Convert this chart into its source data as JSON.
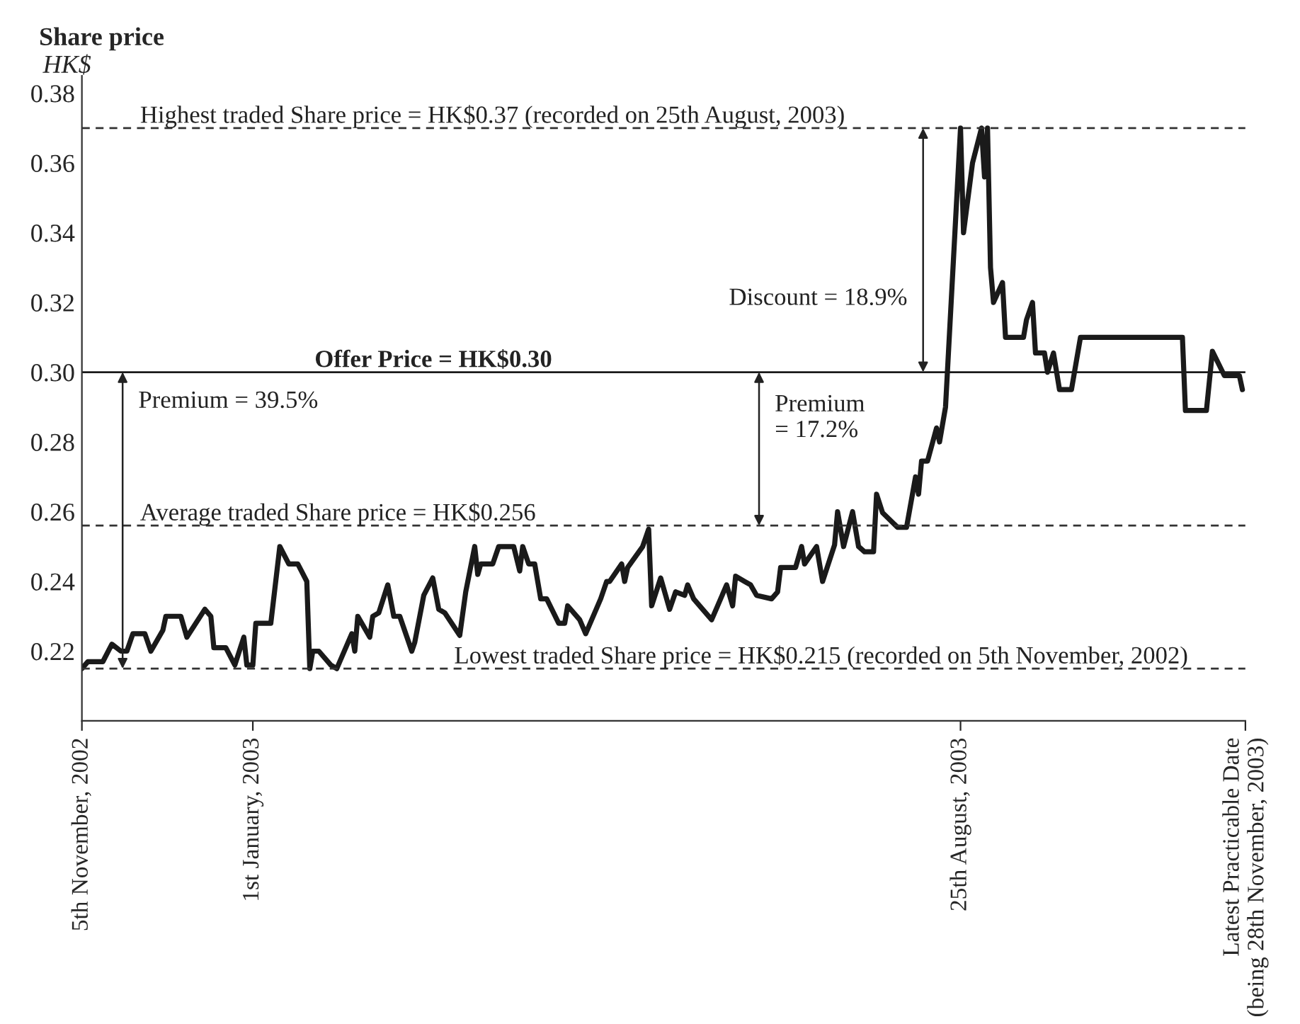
{
  "chart_data": {
    "type": "line",
    "title": "Share price",
    "ylabel": "HK$",
    "x": [
      "2002-11-05",
      "2002-11-07",
      "2002-11-12",
      "2002-11-15",
      "2002-11-18",
      "2002-11-20",
      "2002-11-22",
      "2002-11-26",
      "2002-11-28",
      "2002-12-02",
      "2002-12-03",
      "2002-12-08",
      "2002-12-10",
      "2002-12-16",
      "2002-12-18",
      "2002-12-19",
      "2002-12-23",
      "2002-12-26",
      "2002-12-29",
      "2002-12-30",
      "2003-01-01",
      "2003-01-02",
      "2003-01-07",
      "2003-01-10",
      "2003-01-13",
      "2003-01-16",
      "2003-01-19",
      "2003-01-20",
      "2003-01-21",
      "2003-01-23",
      "2003-01-27",
      "2003-01-29",
      "2003-02-03",
      "2003-02-04",
      "2003-02-05",
      "2003-02-09",
      "2003-02-10",
      "2003-02-12",
      "2003-02-15",
      "2003-02-17",
      "2003-02-19",
      "2003-02-23",
      "2003-02-24",
      "2003-02-27",
      "2003-03-02",
      "2003-03-04",
      "2003-03-06",
      "2003-03-11",
      "2003-03-13",
      "2003-03-16",
      "2003-03-17",
      "2003-03-18",
      "2003-03-22",
      "2003-03-24",
      "2003-03-29",
      "2003-03-31",
      "2003-04-01",
      "2003-04-03",
      "2003-04-05",
      "2003-04-07",
      "2003-04-09",
      "2003-04-13",
      "2003-04-15",
      "2003-04-16",
      "2003-04-20",
      "2003-04-22",
      "2003-04-27",
      "2003-04-29",
      "2003-04-30",
      "2003-05-04",
      "2003-05-05",
      "2003-05-06",
      "2003-05-11",
      "2003-05-13",
      "2003-05-14",
      "2003-05-17",
      "2003-05-20",
      "2003-05-22",
      "2003-05-25",
      "2003-05-26",
      "2003-05-28",
      "2003-06-03",
      "2003-06-08",
      "2003-06-10",
      "2003-06-11",
      "2003-06-14",
      "2003-06-16",
      "2003-06-18",
      "2003-06-23",
      "2003-06-25",
      "2003-06-26",
      "2003-07-01",
      "2003-07-03",
      "2003-07-04",
      "2003-07-08",
      "2003-07-10",
      "2003-07-14",
      "2003-07-15",
      "2003-07-17",
      "2003-07-20",
      "2003-07-22",
      "2003-07-24",
      "2003-07-27",
      "2003-07-28",
      "2003-07-30",
      "2003-08-04",
      "2003-08-07",
      "2003-08-10",
      "2003-08-11",
      "2003-08-12",
      "2003-08-14",
      "2003-08-17",
      "2003-08-18",
      "2003-08-20",
      "2003-08-25",
      "2003-08-26",
      "2003-08-29",
      "2003-09-01",
      "2003-09-02",
      "2003-09-03",
      "2003-09-04",
      "2003-09-05",
      "2003-09-08",
      "2003-09-09",
      "2003-09-15",
      "2003-09-16",
      "2003-09-18",
      "2003-09-19",
      "2003-09-22",
      "2003-09-23",
      "2003-09-25",
      "2003-09-27",
      "2003-10-01",
      "2003-10-04",
      "2003-11-07",
      "2003-11-08",
      "2003-11-15",
      "2003-11-17",
      "2003-11-21",
      "2003-11-26",
      "2003-11-27"
    ],
    "series": [
      {
        "color": "#1a1a1a",
        "values": [
          0.215,
          0.217,
          0.217,
          0.222,
          0.22,
          0.22,
          0.225,
          0.225,
          0.22,
          0.226,
          0.23,
          0.23,
          0.224,
          0.232,
          0.23,
          0.221,
          0.221,
          0.216,
          0.224,
          0.216,
          0.216,
          0.228,
          0.228,
          0.25,
          0.245,
          0.245,
          0.24,
          0.215,
          0.22,
          0.22,
          0.216,
          0.215,
          0.225,
          0.22,
          0.23,
          0.224,
          0.23,
          0.231,
          0.239,
          0.23,
          0.23,
          0.22,
          0.2225,
          0.236,
          0.241,
          0.232,
          0.231,
          0.2245,
          0.237,
          0.25,
          0.242,
          0.245,
          0.245,
          0.25,
          0.25,
          0.243,
          0.25,
          0.245,
          0.245,
          0.235,
          0.235,
          0.228,
          0.228,
          0.233,
          0.229,
          0.225,
          0.235,
          0.24,
          0.24,
          0.245,
          0.24,
          0.244,
          0.25,
          0.255,
          0.233,
          0.241,
          0.232,
          0.237,
          0.236,
          0.239,
          0.235,
          0.229,
          0.239,
          0.233,
          0.2415,
          0.24,
          0.239,
          0.236,
          0.235,
          0.237,
          0.244,
          0.244,
          0.25,
          0.245,
          0.25,
          0.24,
          0.2505,
          0.26,
          0.25,
          0.26,
          0.25,
          0.2485,
          0.2485,
          0.265,
          0.2597,
          0.2555,
          0.2555,
          0.27,
          0.265,
          0.2745,
          0.2745,
          0.284,
          0.28,
          0.29,
          0.37,
          0.34,
          0.36,
          0.37,
          0.356,
          0.37,
          0.33,
          0.32,
          0.3257,
          0.31,
          0.31,
          0.315,
          0.32,
          0.3055,
          0.3055,
          0.3,
          0.3055,
          0.295,
          0.295,
          0.31,
          0.31,
          0.289,
          0.289,
          0.306,
          0.299,
          0.299,
          0.295
        ]
      }
    ],
    "xlim": [
      "2002-11-05",
      "2003-11-28"
    ],
    "xticks": [
      {
        "value": "2002-11-05",
        "label": "5th November, 2002"
      },
      {
        "value": "2003-01-01",
        "label": "1st January, 2003"
      },
      {
        "value": "2003-08-25",
        "label": "25th August, 2003"
      },
      {
        "value": "2003-11-28",
        "label": "Latest Practicable Date\n(being 28th November, 2003)"
      }
    ],
    "ylim": [
      0.2,
      0.385
    ],
    "yticks": [
      {
        "value": 0.22,
        "label": "0.22"
      },
      {
        "value": 0.24,
        "label": "0.24"
      },
      {
        "value": 0.26,
        "label": "0.26"
      },
      {
        "value": 0.28,
        "label": "0.28"
      },
      {
        "value": 0.3,
        "label": "0.30"
      },
      {
        "value": 0.32,
        "label": "0.32"
      },
      {
        "value": 0.34,
        "label": "0.34"
      },
      {
        "value": 0.36,
        "label": "0.36"
      },
      {
        "value": 0.38,
        "label": "0.38"
      }
    ],
    "ref_lines": [
      {
        "axis": "y",
        "value": 0.37,
        "label": "Highest traded Share price = HK$0.37 (recorded on 25th August, 2003)",
        "line_style": "dashed",
        "color": "#333333"
      },
      {
        "axis": "y",
        "value": 0.3,
        "label": "Offer Price = HK$0.30",
        "line_style": "solid",
        "color": "#1a1a1a"
      },
      {
        "axis": "y",
        "value": 0.256,
        "label": "Average traded Share price = HK$0.256",
        "line_style": "dashed",
        "color": "#333333"
      },
      {
        "axis": "y",
        "value": 0.215,
        "label": "Lowest traded Share price = HK$0.215 (recorded on 5th November, 2002)",
        "line_style": "dashed",
        "color": "#333333"
      }
    ],
    "annotations": [
      "Premium = 39.5%",
      "Premium\n= 17.2%",
      "Discount = 18.9%"
    ],
    "grid": false,
    "legend": false,
    "marker": "none",
    "line_style": "solid"
  }
}
